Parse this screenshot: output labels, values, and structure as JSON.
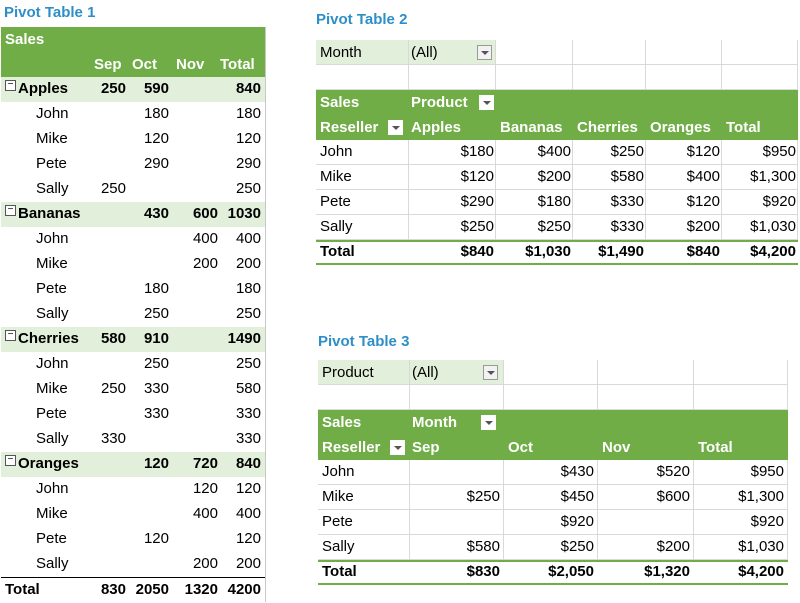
{
  "pivot1": {
    "title": "Pivot Table 1",
    "header_label": "Sales",
    "columns": [
      "Sep",
      "Oct",
      "Nov",
      "Total"
    ],
    "groups": [
      {
        "name": "Apples",
        "values": [
          "250",
          "590",
          "",
          "840"
        ],
        "rows": [
          {
            "name": "John",
            "values": [
              "",
              "180",
              "",
              "180"
            ]
          },
          {
            "name": "Mike",
            "values": [
              "",
              "120",
              "",
              "120"
            ]
          },
          {
            "name": "Pete",
            "values": [
              "",
              "290",
              "",
              "290"
            ]
          },
          {
            "name": "Sally",
            "values": [
              "250",
              "",
              "",
              "250"
            ]
          }
        ]
      },
      {
        "name": "Bananas",
        "values": [
          "",
          "430",
          "600",
          "1030"
        ],
        "rows": [
          {
            "name": "John",
            "values": [
              "",
              "",
              "400",
              "400"
            ]
          },
          {
            "name": "Mike",
            "values": [
              "",
              "",
              "200",
              "200"
            ]
          },
          {
            "name": "Pete",
            "values": [
              "",
              "180",
              "",
              "180"
            ]
          },
          {
            "name": "Sally",
            "values": [
              "",
              "250",
              "",
              "250"
            ]
          }
        ]
      },
      {
        "name": "Cherries",
        "values": [
          "580",
          "910",
          "",
          "1490"
        ],
        "rows": [
          {
            "name": "John",
            "values": [
              "",
              "250",
              "",
              "250"
            ]
          },
          {
            "name": "Mike",
            "values": [
              "250",
              "330",
              "",
              "580"
            ]
          },
          {
            "name": "Pete",
            "values": [
              "",
              "330",
              "",
              "330"
            ]
          },
          {
            "name": "Sally",
            "values": [
              "330",
              "",
              "",
              "330"
            ]
          }
        ]
      },
      {
        "name": "Oranges",
        "values": [
          "",
          "120",
          "720",
          "840"
        ],
        "rows": [
          {
            "name": "John",
            "values": [
              "",
              "",
              "120",
              "120"
            ]
          },
          {
            "name": "Mike",
            "values": [
              "",
              "",
              "400",
              "400"
            ]
          },
          {
            "name": "Pete",
            "values": [
              "",
              "120",
              "",
              "120"
            ]
          },
          {
            "name": "Sally",
            "values": [
              "",
              "",
              "200",
              "200"
            ]
          }
        ]
      }
    ],
    "total": {
      "label": "Total",
      "values": [
        "830",
        "2050",
        "1320",
        "4200"
      ]
    }
  },
  "pivot2": {
    "title": "Pivot Table 2",
    "filter_label": "Month",
    "filter_value": "(All)",
    "header_sales": "Sales",
    "header_column_field": "Product",
    "header_row_field": "Reseller",
    "columns": [
      "Apples",
      "Bananas",
      "Cherries",
      "Oranges",
      "Total"
    ],
    "rows": [
      {
        "name": "John",
        "values": [
          "$180",
          "$400",
          "$250",
          "$120",
          "$950"
        ]
      },
      {
        "name": "Mike",
        "values": [
          "$120",
          "$200",
          "$580",
          "$400",
          "$1,300"
        ]
      },
      {
        "name": "Pete",
        "values": [
          "$290",
          "$180",
          "$330",
          "$120",
          "$920"
        ]
      },
      {
        "name": "Sally",
        "values": [
          "$250",
          "$250",
          "$330",
          "$200",
          "$1,030"
        ]
      }
    ],
    "total": {
      "label": "Total",
      "values": [
        "$840",
        "$1,030",
        "$1,490",
        "$840",
        "$4,200"
      ]
    }
  },
  "pivot3": {
    "title": "Pivot Table 3",
    "filter_label": "Product",
    "filter_value": "(All)",
    "header_sales": "Sales",
    "header_column_field": "Month",
    "header_row_field": "Reseller",
    "columns": [
      "Sep",
      "Oct",
      "Nov",
      "Total"
    ],
    "rows": [
      {
        "name": "John",
        "values": [
          "",
          "$430",
          "$520",
          "$950"
        ]
      },
      {
        "name": "Mike",
        "values": [
          "$250",
          "$450",
          "$600",
          "$1,300"
        ]
      },
      {
        "name": "Pete",
        "values": [
          "",
          "$920",
          "",
          "$920"
        ]
      },
      {
        "name": "Sally",
        "values": [
          "$580",
          "$250",
          "$200",
          "$1,030"
        ]
      }
    ],
    "total": {
      "label": "Total",
      "values": [
        "$830",
        "$2,050",
        "$1,320",
        "$4,200"
      ]
    }
  }
}
